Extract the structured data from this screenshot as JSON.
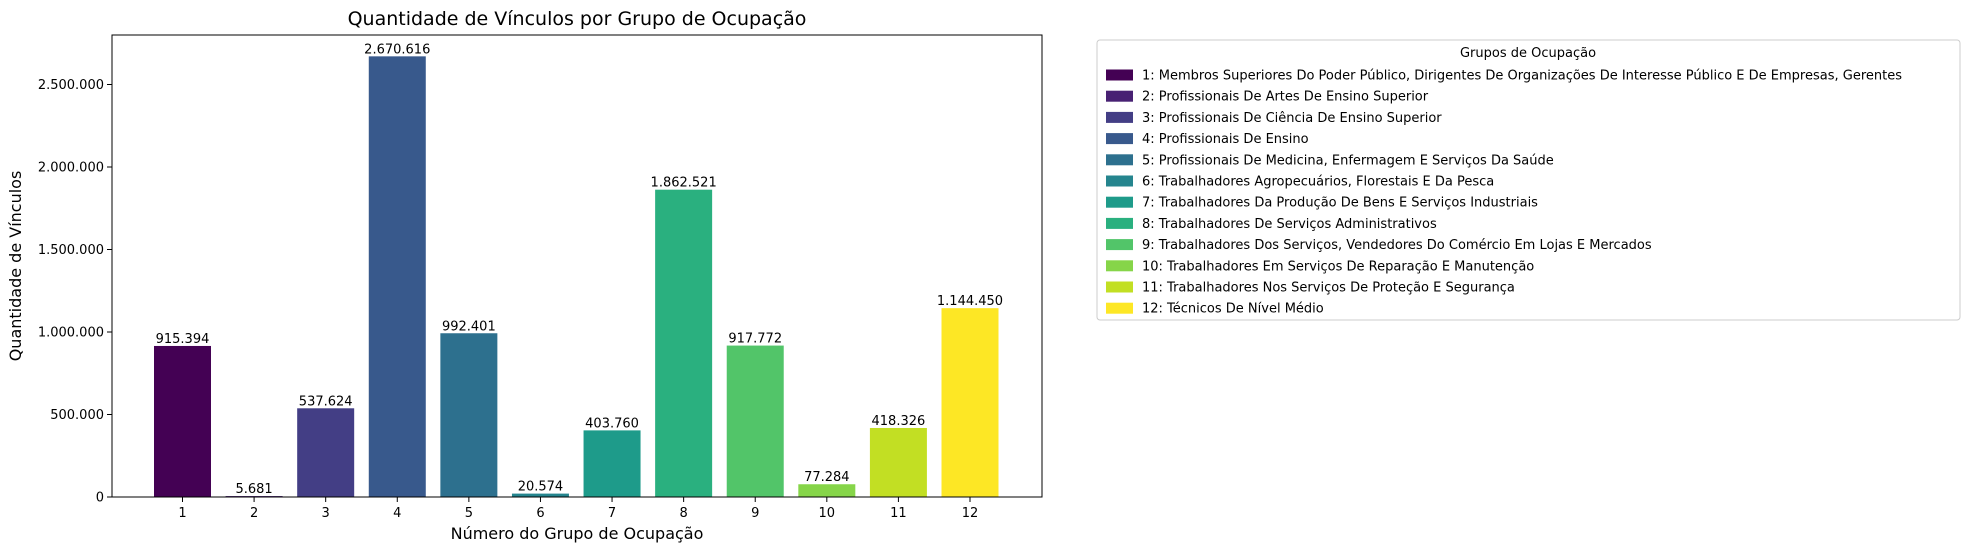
{
  "chart_data": {
    "type": "bar",
    "title": "Quantidade de Vínculos por Grupo de Ocupação",
    "xlabel": "Número do Grupo de Ocupação",
    "ylabel": "Quantidade de Vínculos",
    "categories": [
      "1",
      "2",
      "3",
      "4",
      "5",
      "6",
      "7",
      "8",
      "9",
      "10",
      "11",
      "12"
    ],
    "values": [
      915394,
      5681,
      537624,
      2670616,
      992401,
      20574,
      403760,
      1862521,
      917772,
      77284,
      418326,
      1144450
    ],
    "value_labels": [
      "915.394",
      "5.681",
      "537.624",
      "2.670.616",
      "992.401",
      "20.574",
      "403.760",
      "1.862.521",
      "917.772",
      "77.284",
      "418.326",
      "1.144.450"
    ],
    "ylim": [
      0,
      2800000
    ],
    "yticks": [
      0,
      500000,
      1000000,
      1500000,
      2000000,
      2500000
    ],
    "ytick_labels": [
      "0",
      "500.000",
      "1.000.000",
      "1.500.000",
      "2.000.000",
      "2.500.000"
    ],
    "grid": false,
    "colors": [
      "#440154",
      "#482173",
      "#433e85",
      "#38598c",
      "#2d708e",
      "#25858e",
      "#1e9b8a",
      "#2ab07f",
      "#52c569",
      "#86d549",
      "#c2df23",
      "#fde725"
    ],
    "legend": {
      "title": "Grupos de Ocupação",
      "placement": "outside-right",
      "entries": [
        "1: Membros Superiores Do Poder Público, Dirigentes De Organizações De Interesse Público E De Empresas, Gerentes",
        "2: Profissionais De Artes De Ensino Superior",
        "3: Profissionais De Ciência De Ensino Superior",
        "4: Profissionais De Ensino",
        "5: Profissionais De Medicina, Enfermagem E Serviços Da Saúde",
        "6: Trabalhadores Agropecuários, Florestais E Da Pesca",
        "7: Trabalhadores Da Produção De Bens E Serviços Industriais",
        "8: Trabalhadores De Serviços Administrativos",
        "9: Trabalhadores Dos Serviços, Vendedores Do Comércio Em Lojas E Mercados",
        "10: Trabalhadores Em Serviços De Reparação E Manutenção",
        "11: Trabalhadores Nos Serviços De Proteção E Segurança",
        "12: Técnicos De Nível Médio"
      ]
    }
  }
}
